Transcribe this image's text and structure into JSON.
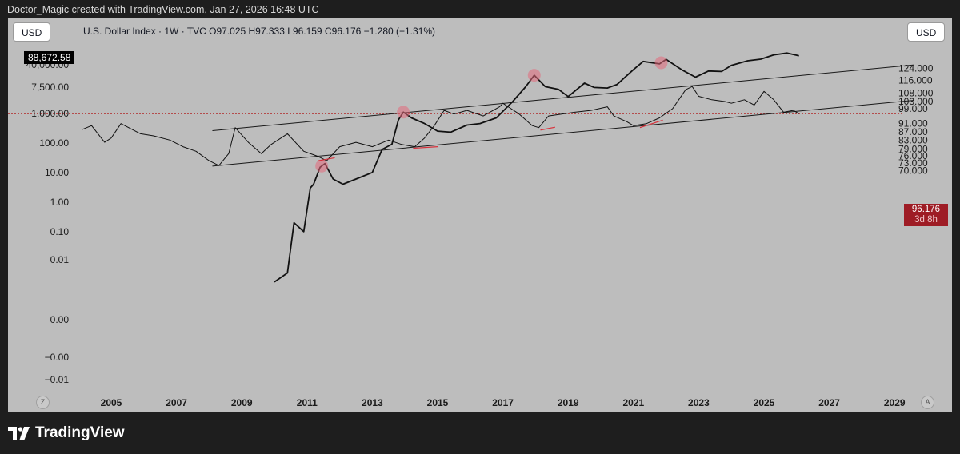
{
  "header": {
    "attribution": "Doctor_Magic created with TradingView.com, Jan 27, 2026 16:48 UTC"
  },
  "toolbar": {
    "left_currency": "USD",
    "right_currency": "USD",
    "legend": "U.S. Dollar Index · 1W · TVC  O97.025  H97.333  L96.159  C96.176  −1.280 (−1.31%)",
    "left_last_value": "88,672.58",
    "price_value": "96.176",
    "price_countdown": "3d 8h",
    "corner_left": "Z",
    "corner_right": "A"
  },
  "footer": {
    "brand": "TradingView"
  },
  "colors": {
    "panel_bg": "#bdbdbd",
    "line": "#000000",
    "highlight": "#e46a7c",
    "price_badge": "#9e1c25",
    "dotted_line": "#b33b3b"
  },
  "chart_data": {
    "type": "line",
    "title": "",
    "x_axis": {
      "tick_labels": [
        "2005",
        "2007",
        "2009",
        "2011",
        "2013",
        "2015",
        "2017",
        "2019",
        "2021",
        "2023",
        "2025",
        "2027",
        "2029"
      ],
      "range": [
        2004.1,
        2029.6
      ]
    },
    "y_axis_left": {
      "scale": "log",
      "tick_labels": [
        "40,000.00",
        "7,500.00",
        "1,000.00",
        "100.00",
        "10.00",
        "1.00",
        "0.10",
        "0.01",
        "0.00",
        "−0.00",
        "−0.01"
      ]
    },
    "y_axis_right": {
      "scale": "log",
      "range": [
        69,
        130
      ],
      "tick_labels": [
        "124.000",
        "116.000",
        "108.000",
        "103.000",
        "99.000",
        "91.000",
        "87.000",
        "83.000",
        "79.000",
        "76.000",
        "73.000",
        "70.000"
      ]
    },
    "series": [
      {
        "name": "U.S. Dollar Index",
        "axis": "right",
        "x": [
          2004.1,
          2004.4,
          2004.8,
          2005.0,
          2005.3,
          2005.9,
          2006.3,
          2006.8,
          2007.2,
          2007.6,
          2008.0,
          2008.3,
          2008.6,
          2008.8,
          2009.2,
          2009.6,
          2009.9,
          2010.4,
          2010.9,
          2011.3,
          2011.6,
          2012.0,
          2012.5,
          2013.0,
          2013.5,
          2013.9,
          2014.3,
          2014.6,
          2014.9,
          2015.2,
          2015.5,
          2015.9,
          2016.4,
          2016.9,
          2017.0,
          2017.5,
          2017.9,
          2018.1,
          2018.4,
          2018.8,
          2019.2,
          2019.7,
          2020.2,
          2020.4,
          2020.8,
          2021.0,
          2021.4,
          2021.8,
          2022.2,
          2022.6,
          2022.8,
          2023.0,
          2023.4,
          2023.8,
          2024.0,
          2024.4,
          2024.7,
          2025.0,
          2025.3,
          2025.6,
          2025.9,
          2026.07
        ],
        "values": [
          88,
          90,
          82,
          84,
          91,
          86,
          85,
          83,
          80,
          78,
          74,
          72,
          77,
          89,
          82,
          77,
          81,
          86,
          78,
          76,
          74,
          80,
          82,
          80,
          83,
          81,
          80,
          84,
          90,
          98,
          96,
          98,
          95,
          100,
          102,
          96,
          90,
          89,
          95,
          96,
          97,
          98,
          100,
          95,
          92,
          90,
          91,
          94,
          99,
          110,
          112,
          106,
          104,
          103,
          102,
          104,
          101,
          109,
          104,
          97,
          98,
          96.18
        ]
      },
      {
        "name": "",
        "axis": "left",
        "x": [
          2010.0,
          2010.4,
          2010.6,
          2010.9,
          2011.1,
          2011.2,
          2011.4,
          2011.55,
          2011.8,
          2012.1,
          2012.5,
          2013.0,
          2013.3,
          2013.6,
          2013.8,
          2013.95,
          2014.2,
          2014.6,
          2015.0,
          2015.4,
          2015.9,
          2016.3,
          2016.8,
          2017.3,
          2017.7,
          2017.96,
          2018.3,
          2018.7,
          2019.0,
          2019.5,
          2019.8,
          2020.2,
          2020.5,
          2021.0,
          2021.3,
          2021.8,
          2022.0,
          2022.5,
          2022.9,
          2023.3,
          2023.7,
          2024.0,
          2024.5,
          2024.9,
          2025.3,
          2025.7,
          2026.07
        ],
        "values": [
          0.002,
          0.004,
          0.2,
          0.1,
          3,
          4,
          15,
          20,
          6,
          4,
          6,
          10,
          60,
          90,
          600,
          1100,
          700,
          450,
          250,
          230,
          400,
          450,
          700,
          2500,
          8000,
          19500,
          8000,
          6500,
          3700,
          10500,
          7500,
          7200,
          9500,
          30000,
          57000,
          47000,
          67000,
          29000,
          16800,
          27000,
          26000,
          42000,
          60000,
          68000,
          95000,
          110000,
          88672.58
        ]
      }
    ],
    "annotations": [
      {
        "type": "trendline",
        "label": "upper channel",
        "from": [
          2008.1,
          87.5
        ],
        "to": [
          2029.6,
          126.4
        ]
      },
      {
        "type": "trendline",
        "label": "lower channel",
        "from": [
          2008.1,
          71.8
        ],
        "to": [
          2029.6,
          103.7
        ]
      },
      {
        "type": "markers",
        "label": "peak circles",
        "series": 1,
        "x": [
          2011.45,
          2013.95,
          2017.96,
          2021.85
        ]
      },
      {
        "type": "segments",
        "label": "higher lows",
        "segments": [
          [
            2011.35,
            74.0,
            2011.85,
            75.2
          ],
          [
            2014.25,
            79.3,
            2015.0,
            80.0
          ],
          [
            2018.15,
            87.8,
            2018.6,
            89.2
          ],
          [
            2021.2,
            89.0,
            2021.9,
            92.8
          ]
        ]
      }
    ]
  }
}
